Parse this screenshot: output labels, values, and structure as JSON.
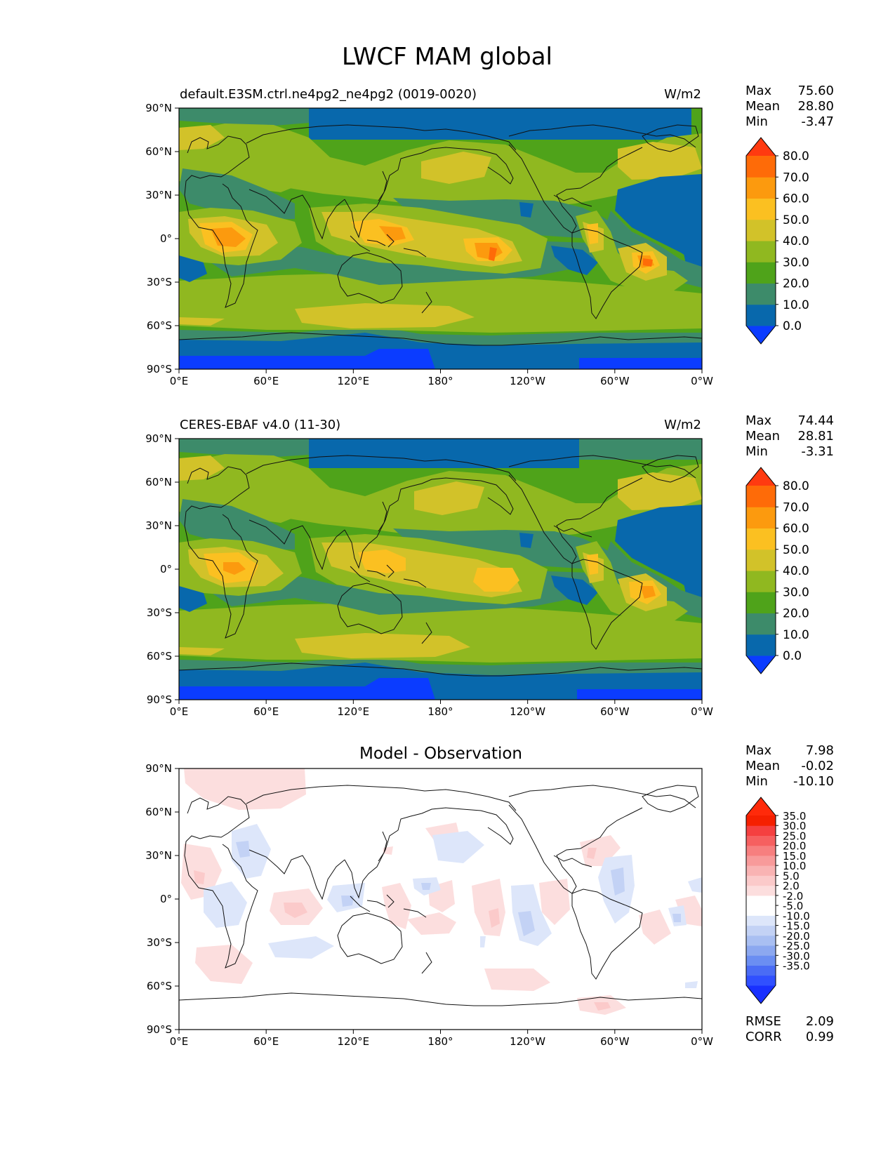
{
  "figure": {
    "title": "LWCF MAM global",
    "lat_ticks": [
      "90°N",
      "60°N",
      "30°N",
      "0°",
      "30°S",
      "60°S",
      "90°S"
    ],
    "lon_ticks": [
      "0°E",
      "60°E",
      "120°E",
      "180°",
      "120°W",
      "60°W",
      "0°W"
    ],
    "colors": {
      "levels": [
        "#0b3cff",
        "#0868ac",
        "#3d8b6a",
        "#4fa31a",
        "#90b820",
        "#d2c229",
        "#fbc021",
        "#fc9a0e",
        "#fe6b08",
        "#ff3a10"
      ],
      "diff": [
        "#1930ff",
        "#3050ff",
        "#4a6cf5",
        "#6b8ef2",
        "#8ca8f0",
        "#a9bff2",
        "#c3d2f5",
        "#dde6fa",
        "#ffffff",
        "#ffffff",
        "#fcdede",
        "#fbcaca",
        "#f9b3b3",
        "#f89a9a",
        "#f77f7f",
        "#f66060",
        "#f54040",
        "#f52000",
        "#ff2a0a"
      ]
    }
  },
  "panels": [
    {
      "id": "model",
      "title_left": "default.E3SM.ctrl.ne4pg2_ne4pg2 (0019-0020)",
      "title_center": "",
      "units": "W/m2",
      "stats": [
        {
          "label": "Max",
          "value": "75.60"
        },
        {
          "label": "Mean",
          "value": "28.80"
        },
        {
          "label": "Min",
          "value": "-3.47"
        }
      ],
      "colorbar_labels": [
        "80.0",
        "70.0",
        "60.0",
        "50.0",
        "40.0",
        "30.0",
        "20.0",
        "10.0",
        "0.0"
      ],
      "extra_stats": []
    },
    {
      "id": "obs",
      "title_left": "CERES-EBAF v4.0 (11-30)",
      "title_center": "",
      "units": "W/m2",
      "stats": [
        {
          "label": "Max",
          "value": "74.44"
        },
        {
          "label": "Mean",
          "value": "28.81"
        },
        {
          "label": "Min",
          "value": "-3.31"
        }
      ],
      "colorbar_labels": [
        "80.0",
        "70.0",
        "60.0",
        "50.0",
        "40.0",
        "30.0",
        "20.0",
        "10.0",
        "0.0"
      ],
      "extra_stats": []
    },
    {
      "id": "diff",
      "title_left": "",
      "title_center": "Model - Observation",
      "units": "",
      "stats": [
        {
          "label": "Max",
          "value": "7.98"
        },
        {
          "label": "Mean",
          "value": "-0.02"
        },
        {
          "label": "Min",
          "value": "-10.10"
        }
      ],
      "colorbar_labels": [
        "35.0",
        "30.0",
        "25.0",
        "20.0",
        "15.0",
        "10.0",
        "5.0",
        "2.0",
        "-2.0",
        "-5.0",
        "-10.0",
        "-15.0",
        "-20.0",
        "-25.0",
        "-30.0",
        "-35.0"
      ],
      "extra_stats": [
        {
          "label": "RMSE",
          "value": "2.09"
        },
        {
          "label": "CORR",
          "value": "0.99"
        }
      ]
    }
  ]
}
